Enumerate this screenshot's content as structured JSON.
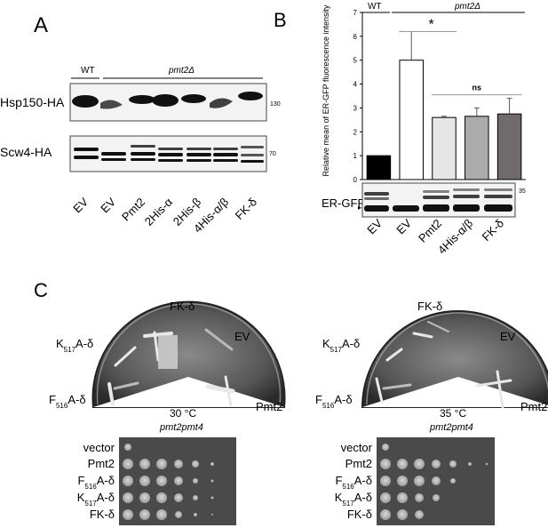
{
  "panels": {
    "a": {
      "letter": "A",
      "wt_label": "WT",
      "mutant_label": "pmt2Δ",
      "blots": [
        {
          "label": "Hsp150-HA",
          "marker": "130"
        },
        {
          "label": "Scw4-HA",
          "marker": "70"
        }
      ],
      "lanes": [
        "EV",
        "EV",
        "Pmt2",
        "2His-α",
        "2His-β",
        "4His-α/β",
        "FK-δ"
      ]
    },
    "b": {
      "letter": "B",
      "wt_label": "WT",
      "mutant_label": "pmt2Δ",
      "blot_label": "ER-GFP",
      "blot_marker": "35",
      "significance": {
        "star": "*",
        "ns": "ns"
      },
      "lanes": [
        "EV",
        "EV",
        "Pmt2",
        "4His-α/β",
        "FK-δ"
      ]
    },
    "c": {
      "letter": "C",
      "plates": [
        {
          "temp": "30 °C",
          "strain": "pmt2pmt4",
          "sector_labels": {
            "top": "FK-δ",
            "ev": "EV",
            "k517": "K517A-δ",
            "f516": "F516A-δ",
            "pmt2": "Pmt2"
          }
        },
        {
          "temp": "35 °C",
          "strain": "pmt2pmt4",
          "sector_labels": {
            "top": "FK-δ",
            "ev": "EV",
            "k517": "K517A-δ",
            "f516": "F516A-δ",
            "pmt2": "Pmt2"
          }
        }
      ],
      "spot_rows": [
        "vector",
        "Pmt2",
        "F516A-δ",
        "K517A-δ",
        "FK-δ"
      ]
    }
  },
  "chart_data": {
    "type": "bar",
    "categories": [
      "EV",
      "EV",
      "Pmt2",
      "4His-α/β",
      "FK-δ"
    ],
    "values": [
      1.0,
      5.0,
      2.6,
      2.65,
      2.75
    ],
    "errors": [
      0,
      1.2,
      0.05,
      0.35,
      0.65
    ],
    "bar_colors": [
      "#000000",
      "#ffffff",
      "#e6e6e6",
      "#ababab",
      "#706a6a"
    ],
    "ylabel": "Relative mean of ER-GFP fluorescence intensity",
    "ylim": [
      0,
      7
    ],
    "yticks": [
      0,
      1,
      2,
      3,
      4,
      5,
      6,
      7
    ]
  }
}
